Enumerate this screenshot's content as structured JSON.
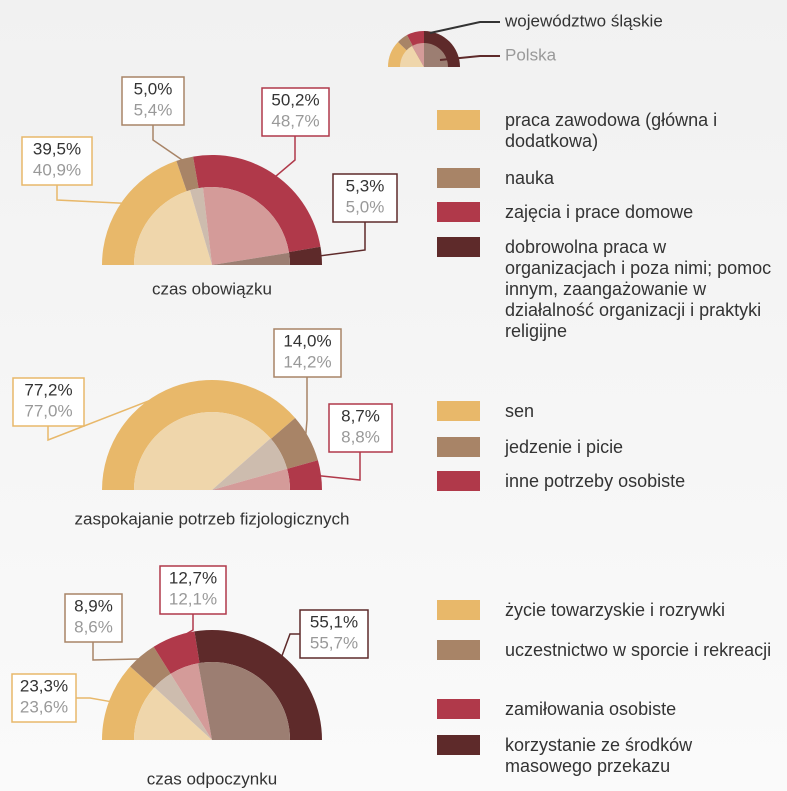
{
  "key": [
    "województwo śląskie",
    "Polska"
  ],
  "chart_data": [
    {
      "type": "half-donut",
      "title": "czas obowiązku",
      "categories": [
        "praca zawodowa (główna i dodatkowa)",
        "nauka",
        "zajęcia i prace domowe",
        "dobrowolna praca w organizacjach i poza nimi; pomoc innym, zaangażowanie w działalność organizacji i praktyki religijne"
      ],
      "series": [
        {
          "values": [
            39.5,
            5.0,
            50.2,
            5.3
          ],
          "value_labels": [
            "39,5%",
            "5,0%",
            "50,2%",
            "5,3%"
          ],
          "colors": [
            "#e8b86a",
            "#a88467",
            "#b0394a",
            "#5e2a2a"
          ]
        },
        {
          "values": [
            40.9,
            5.4,
            48.7,
            5.0
          ],
          "value_labels": [
            "40,9%",
            "5,4%",
            "48,7%",
            "5,0%"
          ],
          "colors": [
            "#efd6ab",
            "#cdbcae",
            "#d49b99",
            "#9c7e72"
          ]
        }
      ]
    },
    {
      "type": "half-donut",
      "title": "zaspokajanie potrzeb fizjologicznych",
      "categories": [
        "sen",
        "jedzenie i picie",
        "inne potrzeby osobiste"
      ],
      "series": [
        {
          "values": [
            77.2,
            14.0,
            8.7
          ],
          "value_labels": [
            "77,2%",
            "14,0%",
            "8,7%"
          ],
          "colors": [
            "#e8b86a",
            "#a88467",
            "#b0394a"
          ]
        },
        {
          "values": [
            77.0,
            14.2,
            8.8
          ],
          "value_labels": [
            "77,0%",
            "14,2%",
            "8,8%"
          ],
          "colors": [
            "#efd6ab",
            "#cdbcae",
            "#d49b99"
          ]
        }
      ]
    },
    {
      "type": "half-donut",
      "title": "czas odpoczynku",
      "categories": [
        "życie towarzyskie i rozrywki",
        "uczestnictwo w sporcie i rekreacji",
        "zamiłowania osobiste",
        "korzystanie ze środków masowego przekazu"
      ],
      "series": [
        {
          "values": [
            23.3,
            8.9,
            12.7,
            55.1
          ],
          "value_labels": [
            "23,3%",
            "8,9%",
            "12,7%",
            "55,1%"
          ],
          "colors": [
            "#e8b86a",
            "#a88467",
            "#b0394a",
            "#5e2a2a"
          ]
        },
        {
          "values": [
            23.6,
            8.6,
            12.1,
            55.7
          ],
          "value_labels": [
            "23,6%",
            "8,6%",
            "12,1%",
            "55,7%"
          ],
          "colors": [
            "#efd6ab",
            "#cdbcae",
            "#d49b99",
            "#9c7e72"
          ]
        }
      ]
    }
  ]
}
